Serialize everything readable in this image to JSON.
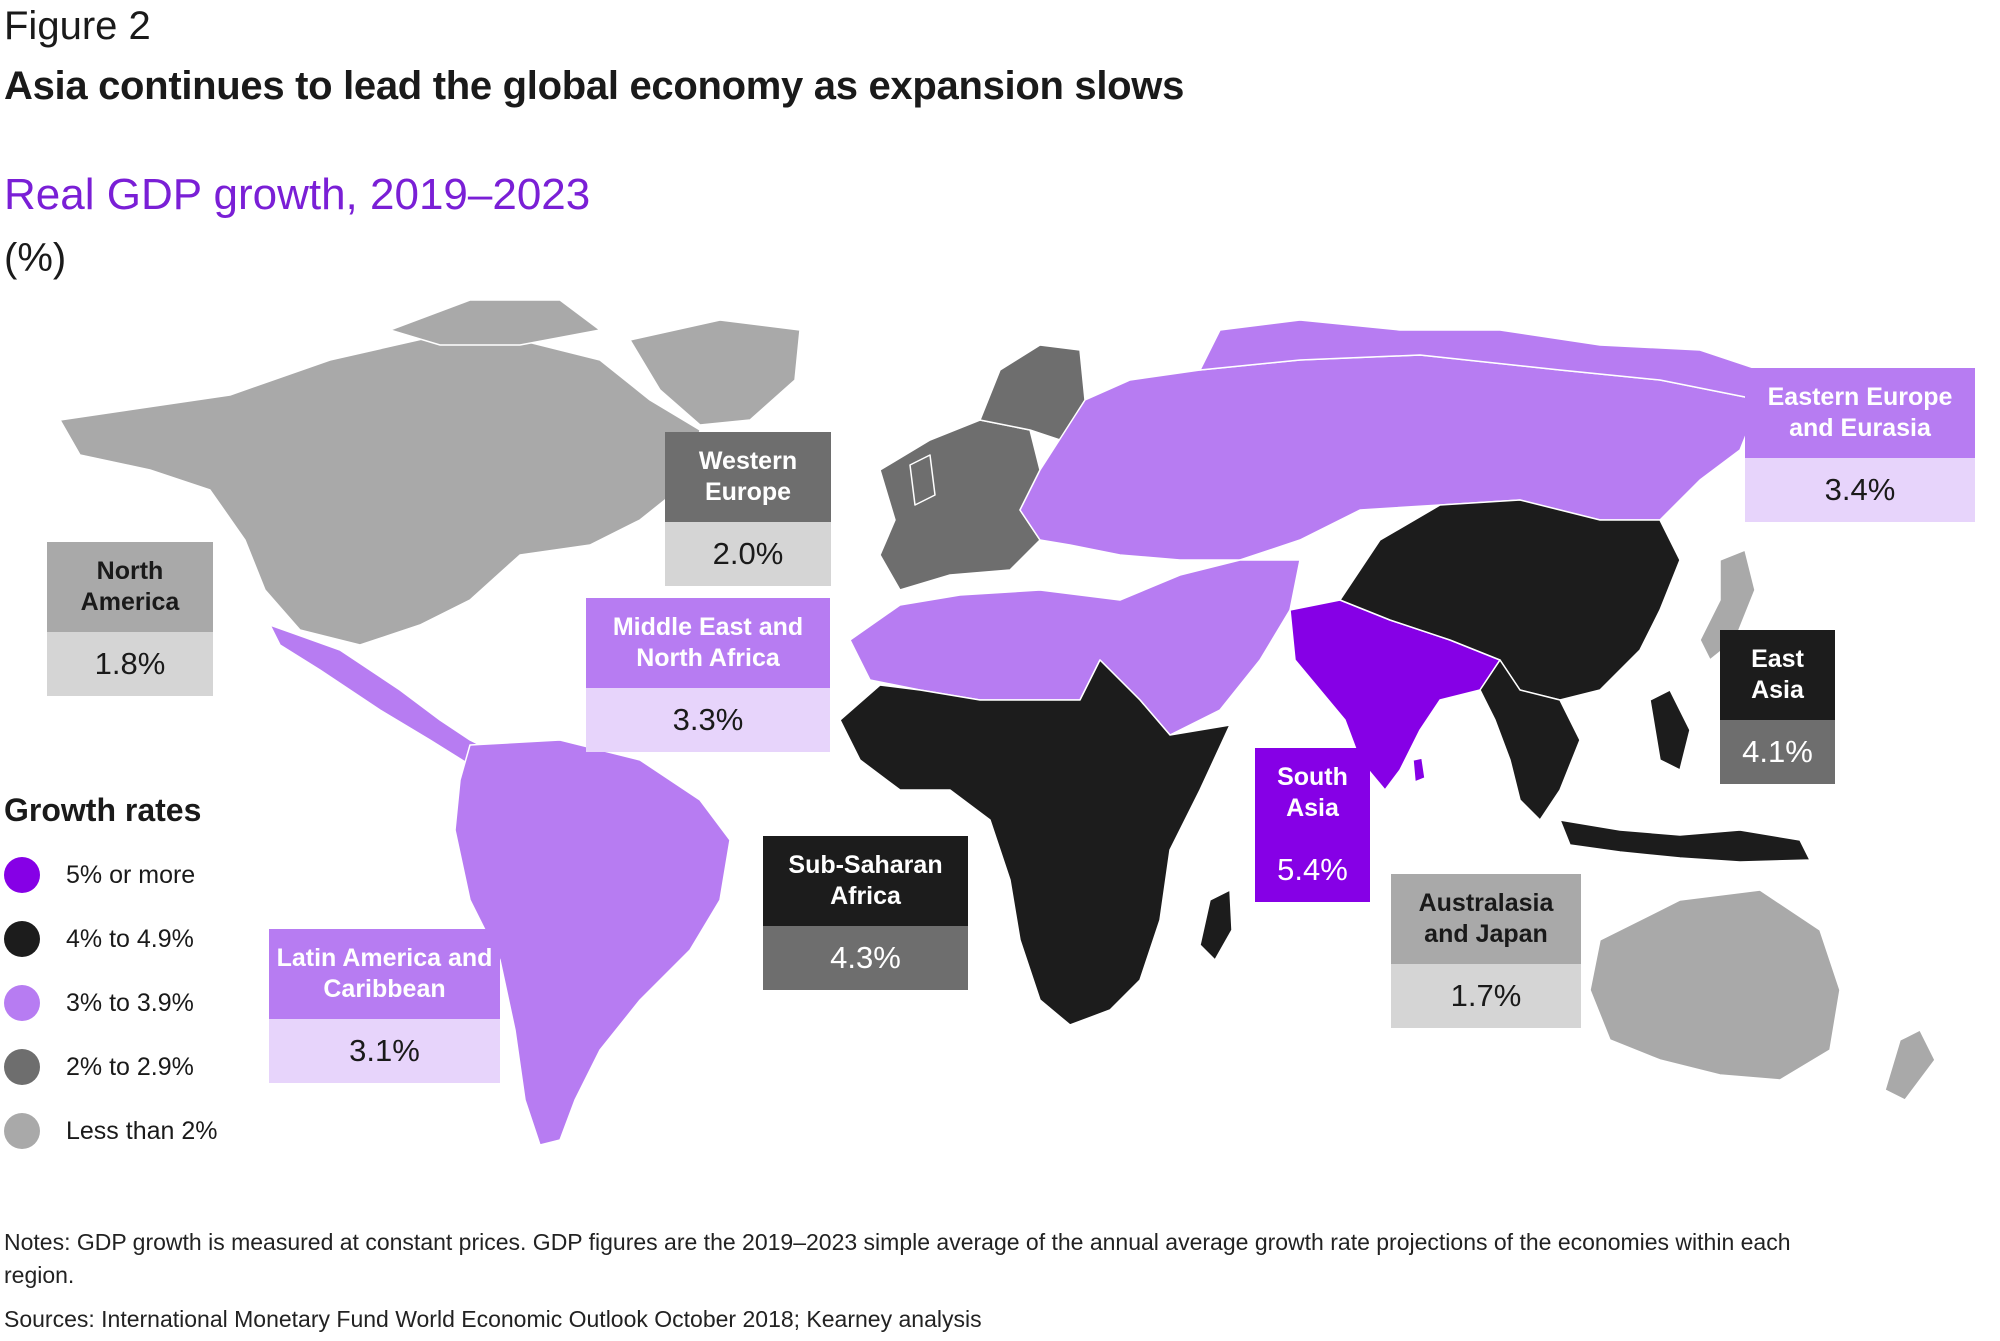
{
  "figure_label": "Figure 2",
  "title": "Asia continues to lead the global economy as expansion slows",
  "subtitle": "Real GDP growth, 2019–2023",
  "unit": "(%)",
  "colors": {
    "very_high": "#8600e6",
    "high": "#1c1c1c",
    "medium": "#b77cf2",
    "low": "#6e6e6e",
    "very_low": "#a9a9a9",
    "medium_light": "#e7d4fb",
    "low_light": "#8a8a8a",
    "very_low_light": "#d5d5d5"
  },
  "legend": {
    "title": "Growth rates",
    "items": [
      {
        "label": "5% or more",
        "color": "#8600e6"
      },
      {
        "label": "4% to 4.9%",
        "color": "#1c1c1c"
      },
      {
        "label": "3% to 3.9%",
        "color": "#b77cf2"
      },
      {
        "label": "2% to 2.9%",
        "color": "#6e6e6e"
      },
      {
        "label": "Less than 2%",
        "color": "#a9a9a9"
      }
    ]
  },
  "regions": [
    {
      "name": "North America",
      "value": "1.8%",
      "class": "very_low"
    },
    {
      "name": "Western Europe",
      "value": "2.0%",
      "class": "low"
    },
    {
      "name": "Middle East and North Africa",
      "value": "3.3%",
      "class": "medium"
    },
    {
      "name": "Eastern Europe and Eurasia",
      "value": "3.4%",
      "class": "medium"
    },
    {
      "name": "East Asia",
      "value": "4.1%",
      "class": "high"
    },
    {
      "name": "South Asia",
      "value": "5.4%",
      "class": "very_high"
    },
    {
      "name": "Sub-Saharan Africa",
      "value": "4.3%",
      "class": "high"
    },
    {
      "name": "Latin America and Caribbean",
      "value": "3.1%",
      "class": "medium"
    },
    {
      "name": "Australasia and Japan",
      "value": "1.7%",
      "class": "very_low"
    }
  ],
  "notes": "Notes: GDP growth is measured at constant prices. GDP figures are the 2019–2023 simple average of the annual average growth rate projections of the economies within each region.",
  "sources": "Sources: International Monetary Fund World Economic Outlook October 2018; Kearney analysis"
}
